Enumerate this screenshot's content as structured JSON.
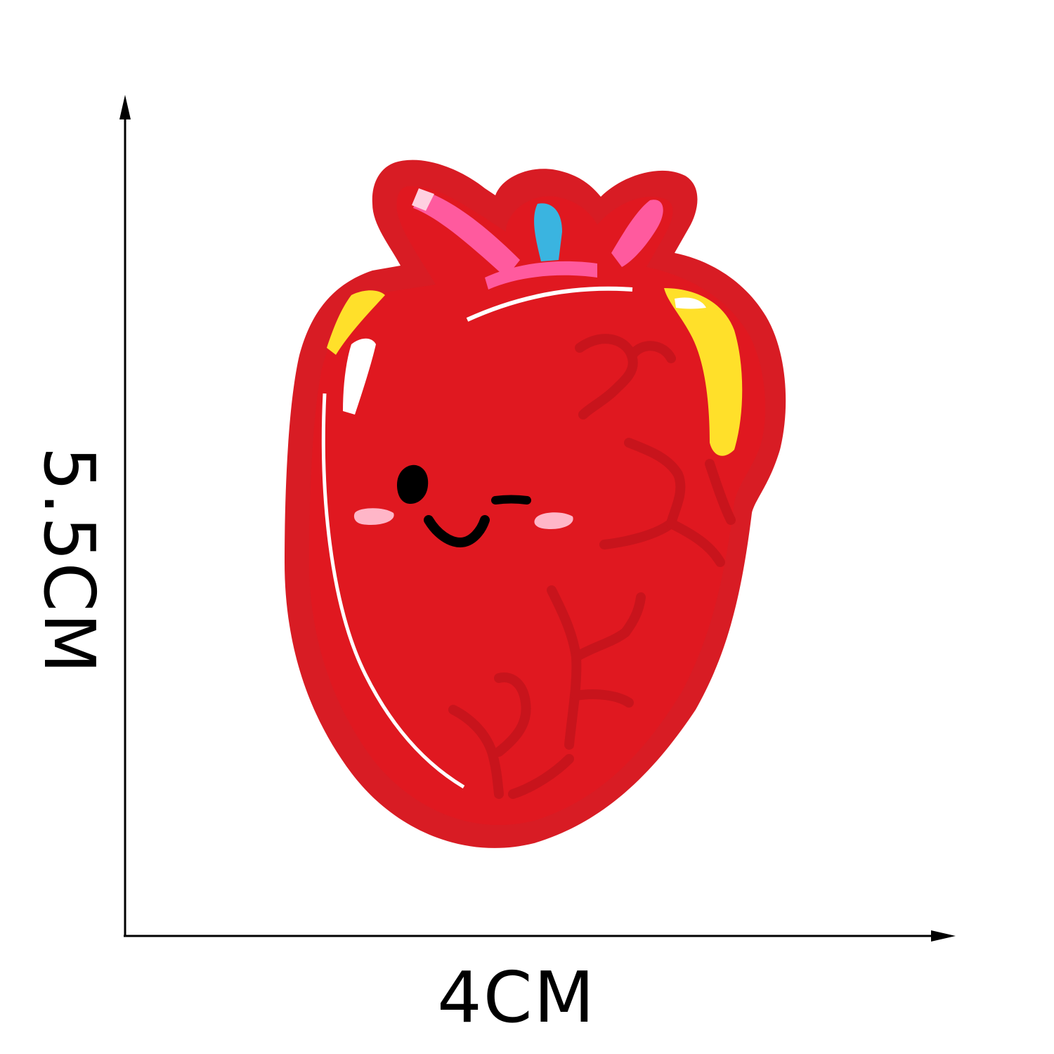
{
  "dimensions": {
    "height_label": "5.5CM",
    "width_label": "4CM"
  },
  "colors": {
    "background": "#ffffff",
    "axis": "#000000",
    "patch_border": "#d81c24",
    "patch_fill": "#e01820",
    "vessel": "#c8141c",
    "highlight_white": "#ffffff",
    "highlight_yellow": "#ffe02a",
    "highlight_pink": "#ff5a9e",
    "highlight_blue": "#3ab4e0",
    "blush": "#ffb6c8",
    "face": "#000000"
  },
  "image": {
    "subject": "heart-patch-icon"
  }
}
